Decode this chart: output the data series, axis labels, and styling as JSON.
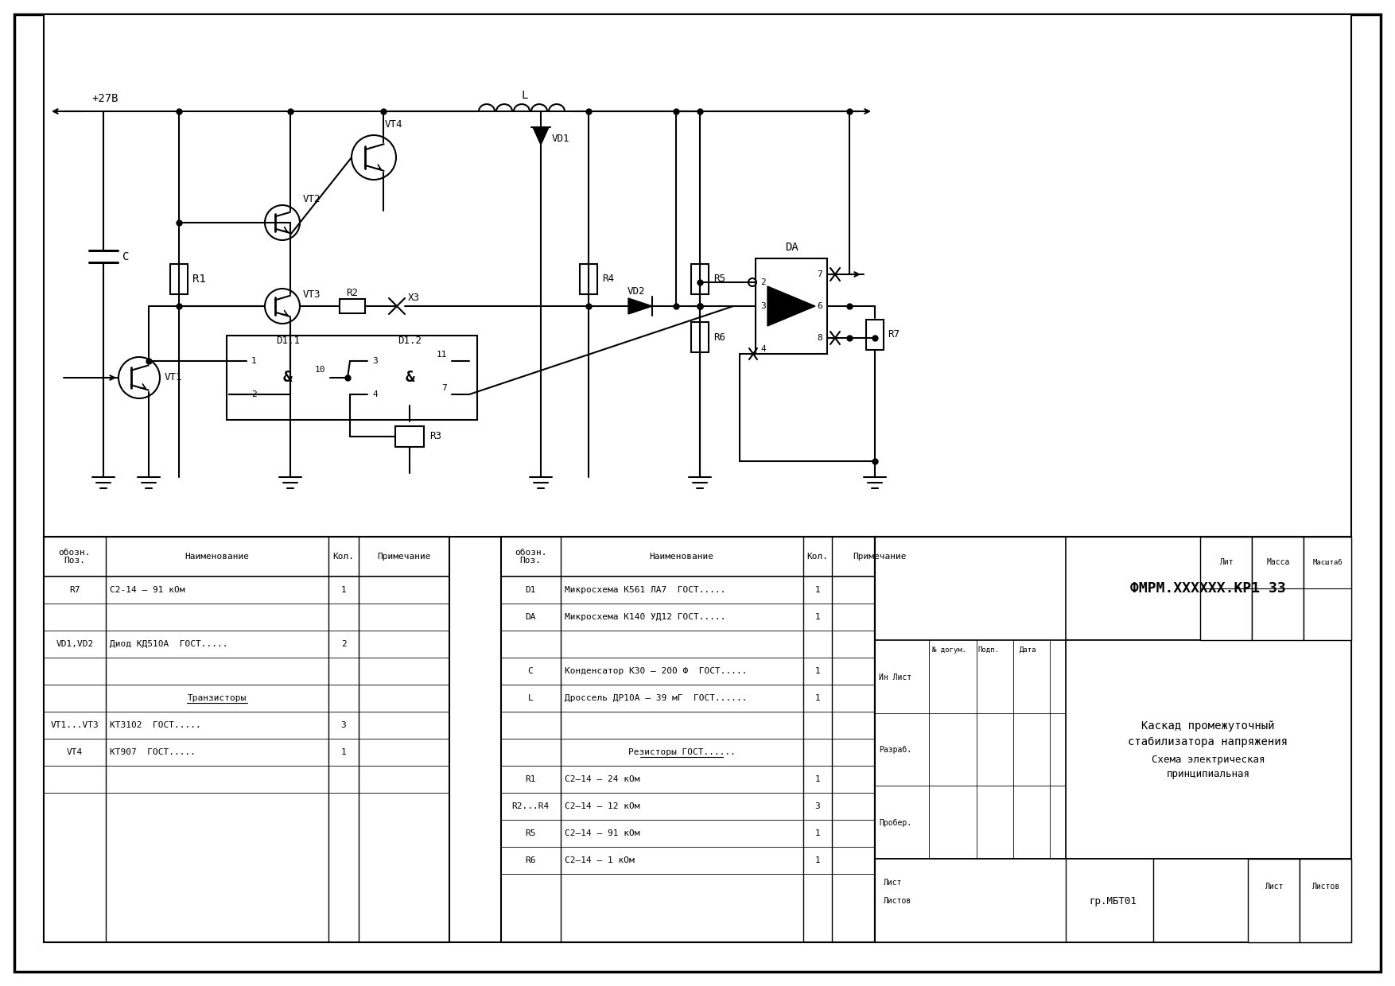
{
  "bg_color": "#ffffff",
  "line_color": "#000000",
  "title_block": {
    "code": "ФМРМ.XXXXXX.КР1 ЗЗ",
    "name_line1": "Каскад промежуточный",
    "name_line2": "стабилизатора напряжения",
    "type_line": "Схема электрическая",
    "type_line2": "принципиальная",
    "label": "гр.МБТ01"
  },
  "bom_right": {
    "rows": [
      [
        "D1",
        "Микросхема К561 ЛА7  ГОСТ.....",
        "1",
        ""
      ],
      [
        "DA",
        "Микросхема К140 УД12 ГОСТ.....",
        "1",
        ""
      ],
      [
        "",
        "",
        "",
        ""
      ],
      [
        "C",
        "Конденсатор К30 – 200 Ф  ГОСТ.....",
        "1",
        ""
      ],
      [
        "L",
        "Дроссель ДР10А – 39 мГ  ГОСТ......",
        "1",
        ""
      ],
      [
        "",
        "",
        "",
        ""
      ],
      [
        "",
        "Резисторы ГОСТ......",
        "",
        ""
      ],
      [
        "R1",
        "С2–14 – 24 кОм",
        "1",
        ""
      ],
      [
        "R2...R4",
        "С2–14 – 12 кОм",
        "3",
        ""
      ],
      [
        "R5",
        "С2–14 – 91 кОм",
        "1",
        ""
      ],
      [
        "R6",
        "С2–14 – 1 кОм",
        "1",
        ""
      ]
    ]
  },
  "bom_left": {
    "rows": [
      [
        "R7",
        "С2-14 – 91 кОм",
        "1",
        ""
      ],
      [
        "",
        "",
        "",
        ""
      ],
      [
        "VD1,VD2",
        "Диод КД510А  ГОСТ.....",
        "2",
        ""
      ],
      [
        "",
        "",
        "",
        ""
      ],
      [
        "",
        "Транзисторы",
        "",
        ""
      ],
      [
        "VT1...VT3",
        "КТ3102  ГОСТ.....",
        "3",
        ""
      ],
      [
        "VT4",
        "КТ907  ГОСТ.....",
        "1",
        ""
      ],
      [
        "",
        "",
        "",
        ""
      ]
    ]
  }
}
